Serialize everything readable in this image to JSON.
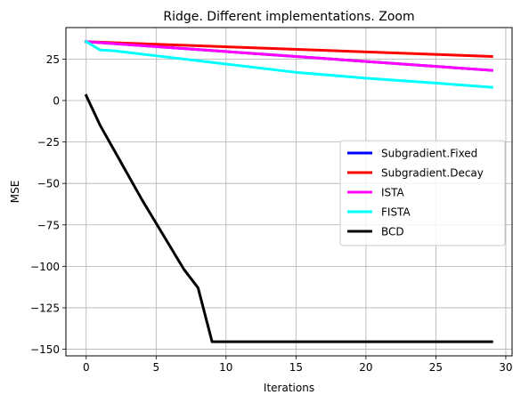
{
  "chart_data": {
    "type": "line",
    "title": "Ridge. Different implementations. Zoom",
    "xlabel": "Iterations",
    "ylabel": "MSE",
    "xlim": [
      -1.45,
      30.45
    ],
    "ylim": [
      -154.0,
      44.0
    ],
    "xticks": [
      0,
      5,
      10,
      15,
      20,
      25,
      30
    ],
    "yticks": [
      -150,
      -125,
      -100,
      -75,
      -50,
      -25,
      0,
      25
    ],
    "grid": true,
    "legend_position": "center-right",
    "series": [
      {
        "name": "Subgradient.Fixed",
        "color": "#0000ff",
        "x": [
          0,
          29
        ],
        "y": [
          35.5,
          18.2
        ]
      },
      {
        "name": "Subgradient.Decay",
        "color": "#ff0000",
        "x": [
          0,
          29
        ],
        "y": [
          35.5,
          26.6
        ]
      },
      {
        "name": "ISTA",
        "color": "#ff00ff",
        "x": [
          0,
          29
        ],
        "y": [
          35.5,
          18.2
        ]
      },
      {
        "name": "FISTA",
        "color": "#00ffff",
        "x": [
          0,
          1,
          2,
          5,
          10,
          15,
          20,
          25,
          29
        ],
        "y": [
          35.5,
          30.5,
          30.0,
          27.0,
          22.0,
          17.0,
          13.5,
          10.5,
          8.0
        ]
      },
      {
        "name": "BCD",
        "color": "#000000",
        "x": [
          0,
          1,
          2,
          3,
          4,
          5,
          6,
          7,
          8,
          9,
          10,
          15,
          20,
          25,
          29
        ],
        "y": [
          3,
          -15,
          -30,
          -45,
          -60,
          -74,
          -88,
          -102,
          -113,
          -145.5,
          -145.5,
          -145.5,
          -145.5,
          -145.5,
          -145.5
        ]
      }
    ]
  }
}
